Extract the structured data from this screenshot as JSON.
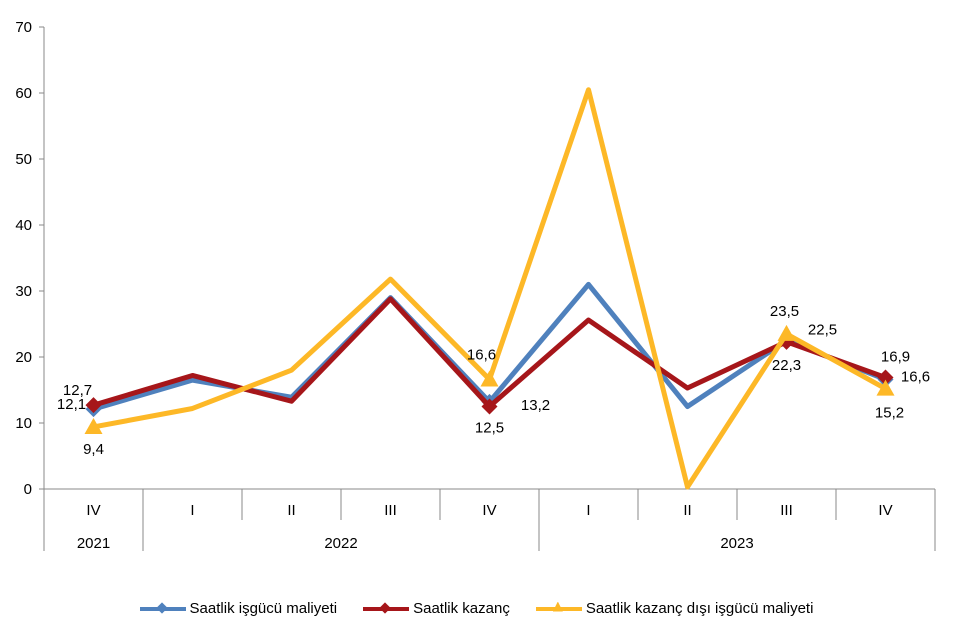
{
  "chart_data": {
    "type": "line",
    "categories": [
      "IV",
      "I",
      "II",
      "III",
      "IV",
      "I",
      "II",
      "III",
      "IV"
    ],
    "year_groups": [
      {
        "label": "2021",
        "span": 1
      },
      {
        "label": "2022",
        "span": 4
      },
      {
        "label": "2023",
        "span": 4
      }
    ],
    "ylim": [
      0,
      70
    ],
    "yticks": [
      0,
      10,
      20,
      30,
      40,
      50,
      60,
      70
    ],
    "grid": false,
    "legend": "bottom",
    "series": [
      {
        "name": "Saatlik işgücü maliyeti",
        "color": "#4F81BD",
        "marker": "diamond",
        "values": [
          12.1,
          16.5,
          13.9,
          29.0,
          13.2,
          31.0,
          12.5,
          22.5,
          16.6
        ],
        "labels": {
          "0": "12,1",
          "4": "13,2",
          "7": "22,5",
          "8": "16,6"
        }
      },
      {
        "name": "Saatlik kazanç",
        "color": "#A6161A",
        "marker": "diamond",
        "values": [
          12.7,
          17.2,
          13.3,
          28.8,
          12.5,
          25.6,
          15.3,
          22.3,
          16.9
        ],
        "labels": {
          "0": "12,7",
          "4": "12,5",
          "7": "22,3",
          "8": "16,9"
        }
      },
      {
        "name": "Saatlik kazanç dışı işgücü maliyeti",
        "color": "#FDB827",
        "marker": "triangle",
        "values": [
          9.4,
          12.2,
          18.0,
          31.8,
          16.6,
          60.5,
          0.3,
          23.5,
          15.2
        ],
        "labels": {
          "0": "9,4",
          "4": "16,6",
          "7": "23,5",
          "8": "15,2"
        }
      }
    ]
  }
}
